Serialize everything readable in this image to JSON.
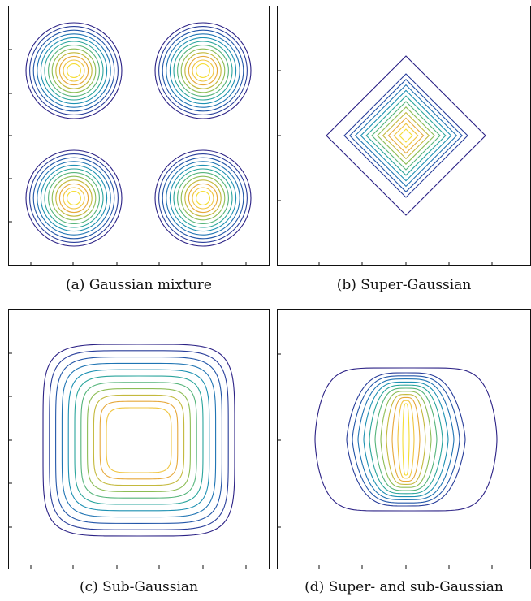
{
  "captions": {
    "a": "(a) Gaussian mixture",
    "b": "(b) Super-Gaussian",
    "c": "(c) Sub-Gaussian",
    "d": "(d) Super- and sub-Gaussian"
  },
  "colors": {
    "frame": "#111111",
    "contour_levels": [
      "#2b2185",
      "#283d9a",
      "#2256a8",
      "#1f74b3",
      "#1c90b2",
      "#2aa59c",
      "#55b47a",
      "#8dbd55",
      "#c4b93d",
      "#e6a83a",
      "#f0c53f",
      "#f5dd33"
    ]
  },
  "contour_level_count": 12
}
